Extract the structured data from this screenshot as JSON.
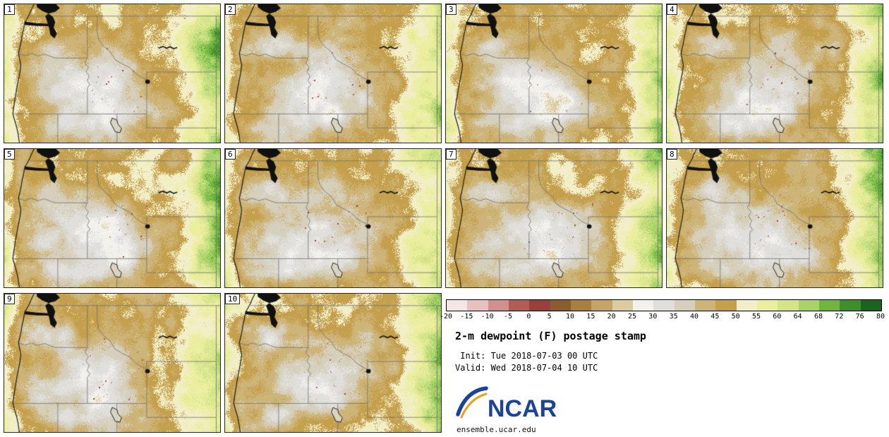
{
  "title": "2-m dewpoint (F) postage stamp",
  "init_line": " Init: Tue 2018-07-03 00 UTC",
  "valid_line": "Valid: Wed 2018-07-04 10 UTC",
  "footer_url": "ensemble.ucar.edu",
  "logo_text": "NCAR",
  "panels": [
    {
      "label": "1"
    },
    {
      "label": "2"
    },
    {
      "label": "3"
    },
    {
      "label": "4"
    },
    {
      "label": "5"
    },
    {
      "label": "6"
    },
    {
      "label": "7"
    },
    {
      "label": "8"
    },
    {
      "label": "9"
    },
    {
      "label": "10"
    }
  ],
  "chart_data": {
    "type": "heatmap",
    "subtype": "ensemble-postage-stamp-maps",
    "variable": "2-m dewpoint (F)",
    "n_members": 10,
    "member_labels": [
      "1",
      "2",
      "3",
      "4",
      "5",
      "6",
      "7",
      "8",
      "9",
      "10"
    ],
    "colorbar": {
      "ticks": [
        -20,
        -15,
        -10,
        -5,
        0,
        5,
        10,
        15,
        20,
        25,
        30,
        35,
        40,
        45,
        50,
        55,
        60,
        64,
        68,
        72,
        76,
        80
      ],
      "colors": [
        "#f3e6e5",
        "#e6c1c0",
        "#d18f8d",
        "#b35c55",
        "#96423a",
        "#8c5c30",
        "#a97f3f",
        "#c4a468",
        "#dccb9c",
        "#f2f1ec",
        "#e0dfdc",
        "#d5cfbc",
        "#cdb478",
        "#c49f4c",
        "#f2efc8",
        "#ebee9f",
        "#d3e489",
        "#a8d36a",
        "#6fb53f",
        "#3f8d2d",
        "#1c6320"
      ]
    },
    "field_hints": {
      "dominant_dewpoint_F": 47,
      "dry_gray_zone_F": 30,
      "east_edge_moist_F": 65,
      "coastal_strip_F": 55,
      "speck_min_F": -14
    },
    "basemap": {
      "coast": [
        [
          0.138,
          0.0
        ],
        [
          0.127,
          0.035
        ],
        [
          0.116,
          0.075
        ],
        [
          0.103,
          0.112
        ],
        [
          0.096,
          0.13
        ],
        [
          0.093,
          0.15
        ],
        [
          0.089,
          0.185
        ],
        [
          0.083,
          0.225
        ],
        [
          0.079,
          0.265
        ],
        [
          0.073,
          0.31
        ],
        [
          0.066,
          0.356
        ],
        [
          0.071,
          0.395
        ],
        [
          0.077,
          0.44
        ],
        [
          0.073,
          0.49
        ],
        [
          0.066,
          0.545
        ],
        [
          0.059,
          0.6
        ],
        [
          0.053,
          0.655
        ],
        [
          0.047,
          0.715
        ],
        [
          0.042,
          0.765
        ],
        [
          0.04,
          0.793
        ],
        [
          0.048,
          0.838
        ],
        [
          0.057,
          0.885
        ],
        [
          0.064,
          0.935
        ],
        [
          0.07,
          1.0
        ]
      ],
      "borders": {
        "us_canada": [
          [
            0.118,
            0.086
          ],
          [
            1.0,
            0.086
          ]
        ],
        "wa_id": [
          [
            0.385,
            0.086
          ],
          [
            0.385,
            0.389
          ]
        ],
        "wa_or": [
          [
            0.068,
            0.358
          ],
          [
            0.096,
            0.372
          ],
          [
            0.126,
            0.356
          ],
          [
            0.156,
            0.374
          ],
          [
            0.186,
            0.36
          ],
          [
            0.212,
            0.376
          ],
          [
            0.236,
            0.389
          ],
          [
            0.385,
            0.389
          ]
        ],
        "or_id": [
          [
            0.385,
            0.389
          ],
          [
            0.374,
            0.425
          ],
          [
            0.39,
            0.455
          ],
          [
            0.379,
            0.487
          ],
          [
            0.394,
            0.52
          ],
          [
            0.384,
            0.552
          ],
          [
            0.397,
            0.581
          ],
          [
            0.385,
            0.604
          ],
          [
            0.385,
            0.793
          ]
        ],
        "lat42": [
          [
            0.042,
            0.793
          ],
          [
            0.66,
            0.793
          ]
        ],
        "ca_nv": [
          [
            0.248,
            0.793
          ],
          [
            0.248,
            1.0
          ]
        ],
        "nv_ut": [
          [
            0.522,
            0.793
          ],
          [
            0.522,
            1.0
          ]
        ],
        "id_mt": [
          [
            0.43,
            0.086
          ],
          [
            0.43,
            0.195
          ],
          [
            0.437,
            0.255
          ],
          [
            0.458,
            0.3
          ],
          [
            0.492,
            0.345
          ],
          [
            0.513,
            0.4
          ],
          [
            0.548,
            0.432
          ],
          [
            0.582,
            0.458
          ],
          [
            0.612,
            0.505
          ],
          [
            0.64,
            0.532
          ],
          [
            0.66,
            0.545
          ],
          [
            0.66,
            0.49
          ]
        ],
        "mt_wy": [
          [
            0.66,
            0.49
          ],
          [
            0.982,
            0.49
          ]
        ],
        "id_wy_ut": [
          [
            0.66,
            0.545
          ],
          [
            0.66,
            0.894
          ],
          [
            0.982,
            0.894
          ]
        ],
        "mt_east": [
          [
            0.982,
            0.086
          ],
          [
            0.982,
            1.0
          ]
        ]
      },
      "water": [
        {
          "name": "strait-of-georgia",
          "pts": [
            [
              0.15,
              0.0
            ],
            [
              0.24,
              0.0
            ],
            [
              0.258,
              0.028
            ],
            [
              0.236,
              0.055
            ],
            [
              0.205,
              0.068
            ],
            [
              0.176,
              0.048
            ],
            [
              0.152,
              0.022
            ]
          ]
        },
        {
          "name": "strait-of-juan-de-fuca",
          "pts": [
            [
              0.094,
              0.126
            ],
            [
              0.15,
              0.136
            ],
            [
              0.206,
              0.141
            ],
            [
              0.212,
              0.158
            ],
            [
              0.15,
              0.157
            ],
            [
              0.096,
              0.149
            ]
          ]
        },
        {
          "name": "puget-sound",
          "pts": [
            [
              0.205,
              0.068
            ],
            [
              0.226,
              0.092
            ],
            [
              0.236,
              0.13
            ],
            [
              0.229,
              0.17
            ],
            [
              0.244,
              0.21
            ],
            [
              0.233,
              0.248
            ],
            [
              0.214,
              0.222
            ],
            [
              0.208,
              0.172
            ],
            [
              0.198,
              0.122
            ],
            [
              0.19,
              0.085
            ]
          ]
        }
      ],
      "lakes": {
        "fort_peck": [
          [
            0.715,
            0.318
          ],
          [
            0.735,
            0.305
          ],
          [
            0.752,
            0.318
          ],
          [
            0.768,
            0.307
          ],
          [
            0.785,
            0.321
          ],
          [
            0.801,
            0.312
          ]
        ],
        "great_salt_lake": [
          [
            0.5,
            0.822
          ],
          [
            0.522,
            0.838
          ],
          [
            0.527,
            0.868
          ],
          [
            0.543,
            0.896
          ],
          [
            0.536,
            0.928
          ],
          [
            0.514,
            0.922
          ],
          [
            0.503,
            0.888
          ],
          [
            0.492,
            0.856
          ]
        ],
        "yellowstone_lake": {
          "cx": 0.664,
          "cy": 0.56,
          "r": 0.011
        }
      }
    }
  }
}
